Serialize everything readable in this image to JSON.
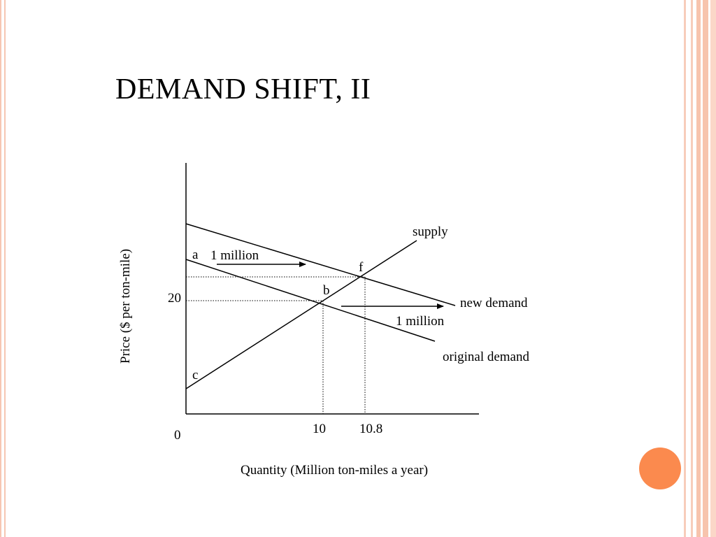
{
  "slide": {
    "title": "DEMAND SHIFT, II"
  },
  "diagram": {
    "labels": {
      "supply": "supply",
      "new_demand": "new demand",
      "original_demand": "original demand",
      "shift_left": "1 million",
      "shift_right": "1 million",
      "point_a": "a",
      "point_b": "b",
      "point_c": "c",
      "point_f": "f",
      "price_20": "20",
      "origin": "0",
      "qty_10": "10",
      "qty_10_8": "10.8",
      "y_axis": "Price ($ per ton-mile)",
      "x_axis": "Quantity (Million ton-miles a year)"
    }
  },
  "colors": {
    "accent_dot": "#fb8a4e",
    "border": "#f7c4ad"
  }
}
